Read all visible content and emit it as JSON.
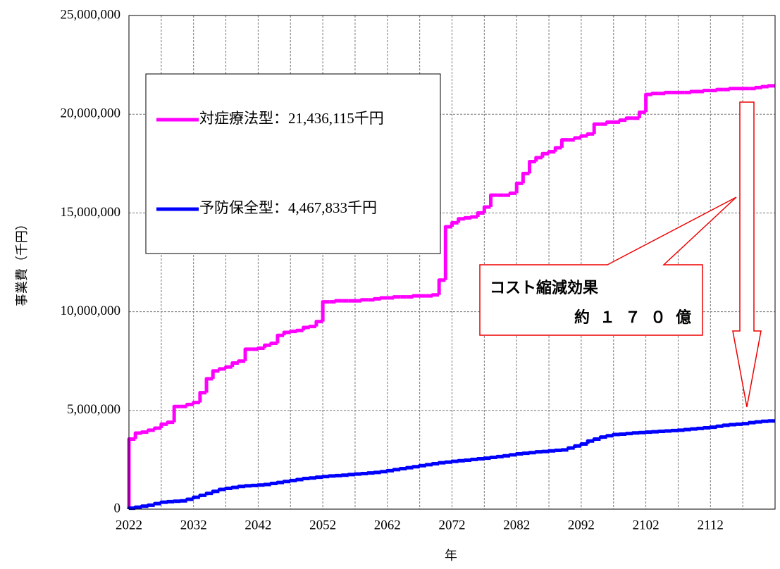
{
  "chart_data": {
    "type": "step-line",
    "x_label": "年",
    "y_label": "事業費（千円）",
    "x": [
      2022,
      2023,
      2024,
      2025,
      2026,
      2027,
      2028,
      2029,
      2030,
      2031,
      2032,
      2033,
      2034,
      2035,
      2036,
      2037,
      2038,
      2039,
      2040,
      2041,
      2042,
      2043,
      2044,
      2045,
      2046,
      2047,
      2048,
      2049,
      2050,
      2051,
      2052,
      2053,
      2054,
      2055,
      2056,
      2057,
      2058,
      2059,
      2060,
      2061,
      2062,
      2063,
      2064,
      2065,
      2066,
      2067,
      2068,
      2069,
      2070,
      2071,
      2072,
      2073,
      2074,
      2075,
      2076,
      2077,
      2078,
      2079,
      2080,
      2081,
      2082,
      2083,
      2084,
      2085,
      2086,
      2087,
      2088,
      2089,
      2090,
      2091,
      2092,
      2093,
      2094,
      2095,
      2096,
      2097,
      2098,
      2099,
      2100,
      2101,
      2102,
      2103,
      2104,
      2105,
      2106,
      2107,
      2108,
      2109,
      2110,
      2111,
      2112,
      2113,
      2114,
      2115,
      2116,
      2117,
      2118,
      2119,
      2120,
      2121
    ],
    "series": [
      {
        "name": "対症療法型：21,436,115千円",
        "color": "#ff00ff",
        "values": [
          3550000,
          3850000,
          3900000,
          4000000,
          4100000,
          4300000,
          4400000,
          5200000,
          5200000,
          5300000,
          5400000,
          5900000,
          6600000,
          7000000,
          7100000,
          7200000,
          7400000,
          7500000,
          8100000,
          8100000,
          8150000,
          8300000,
          8400000,
          8800000,
          8950000,
          9000000,
          9050000,
          9200000,
          9250000,
          9500000,
          10500000,
          10500000,
          10550000,
          10550000,
          10550000,
          10550000,
          10600000,
          10600000,
          10650000,
          10700000,
          10700000,
          10750000,
          10750000,
          10750000,
          10800000,
          10800000,
          10800000,
          10850000,
          11600000,
          14300000,
          14500000,
          14700000,
          14750000,
          14800000,
          15000000,
          15300000,
          15900000,
          15900000,
          15900000,
          16000000,
          16500000,
          17000000,
          17600000,
          17800000,
          18000000,
          18100000,
          18300000,
          18700000,
          18700000,
          18800000,
          18900000,
          19000000,
          19500000,
          19500000,
          19600000,
          19600000,
          19700000,
          19800000,
          19800000,
          20100000,
          21000000,
          21050000,
          21050000,
          21100000,
          21100000,
          21100000,
          21100000,
          21150000,
          21150000,
          21200000,
          21200000,
          21250000,
          21250000,
          21300000,
          21300000,
          21300000,
          21300000,
          21350000,
          21400000,
          21436115
        ]
      },
      {
        "name": "予防保全型：4,467,833千円",
        "color": "#0000ff",
        "values": [
          50000,
          100000,
          150000,
          200000,
          280000,
          350000,
          380000,
          400000,
          420000,
          500000,
          600000,
          700000,
          800000,
          900000,
          1000000,
          1050000,
          1100000,
          1150000,
          1180000,
          1200000,
          1220000,
          1250000,
          1300000,
          1350000,
          1400000,
          1450000,
          1500000,
          1550000,
          1580000,
          1620000,
          1650000,
          1680000,
          1700000,
          1720000,
          1750000,
          1780000,
          1800000,
          1830000,
          1860000,
          1900000,
          1950000,
          2000000,
          2050000,
          2100000,
          2150000,
          2200000,
          2250000,
          2300000,
          2350000,
          2380000,
          2420000,
          2450000,
          2480000,
          2520000,
          2550000,
          2580000,
          2620000,
          2660000,
          2700000,
          2750000,
          2800000,
          2830000,
          2860000,
          2900000,
          2920000,
          2950000,
          2980000,
          3000000,
          3100000,
          3200000,
          3300000,
          3450000,
          3550000,
          3650000,
          3720000,
          3780000,
          3800000,
          3830000,
          3860000,
          3880000,
          3900000,
          3920000,
          3940000,
          3960000,
          3980000,
          4000000,
          4030000,
          4060000,
          4090000,
          4120000,
          4150000,
          4200000,
          4250000,
          4280000,
          4300000,
          4330000,
          4380000,
          4420000,
          4450000,
          4467833
        ]
      }
    ],
    "xlim": [
      2022,
      2122
    ],
    "xticks": [
      2022,
      2032,
      2042,
      2052,
      2062,
      2072,
      2082,
      2092,
      2102,
      2112
    ],
    "x_minor_ticks": [
      2027,
      2037,
      2047,
      2057,
      2067,
      2077,
      2087,
      2097,
      2107,
      2117
    ],
    "ylim": [
      0,
      25000000
    ],
    "yticks": [
      {
        "value": 0,
        "label": "0"
      },
      {
        "value": 5000000,
        "label": "5,000,000"
      },
      {
        "value": 10000000,
        "label": "10,000,000"
      },
      {
        "value": 15000000,
        "label": "15,000,000"
      },
      {
        "value": 20000000,
        "label": "20,000,000"
      },
      {
        "value": 25000000,
        "label": "25,000,000"
      }
    ],
    "grid": true,
    "annotations": [
      "コスト縮減効果",
      "約１７０億"
    ]
  }
}
